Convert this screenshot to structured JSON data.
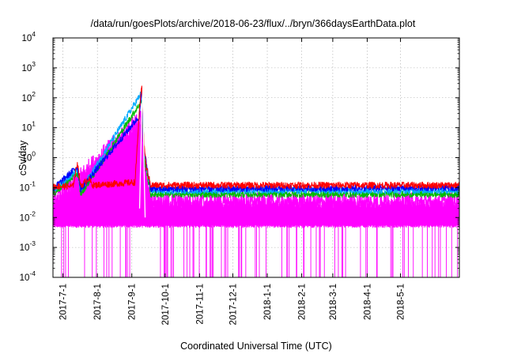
{
  "chart_data": {
    "type": "line",
    "title": "/data/run/goesPlots/archive/2018-06-23/flux/../bryn/366daysEarthData.plot",
    "xlabel": "Coordinated Universal Time (UTC)",
    "ylabel": "cSv/day",
    "yscale": "log",
    "ylim": [
      0.0001,
      10000
    ],
    "xlim": [
      "2017-06-22",
      "2018-06-23"
    ],
    "x_ticks": [
      "2017-7-1",
      "2017-8-1",
      "2017-9-1",
      "2017-10-1",
      "2017-11-1",
      "2017-12-1",
      "2018-1-1",
      "2018-2-1",
      "2018-3-1",
      "2018-4-1",
      "2018-5-1"
    ],
    "y_ticks": [
      {
        "value": 0.0001,
        "base": "10",
        "exp": "-4"
      },
      {
        "value": 0.001,
        "base": "10",
        "exp": "-3"
      },
      {
        "value": 0.01,
        "base": "10",
        "exp": "-2"
      },
      {
        "value": 0.1,
        "base": "10",
        "exp": "-1"
      },
      {
        "value": 1,
        "base": "10",
        "exp": "0"
      },
      {
        "value": 10,
        "base": "10",
        "exp": "1"
      },
      {
        "value": 100,
        "base": "10",
        "exp": "2"
      },
      {
        "value": 1000,
        "base": "10",
        "exp": "3"
      },
      {
        "value": 10000,
        "base": "10",
        "exp": "4"
      }
    ],
    "grid": true,
    "series": [
      {
        "color": "#ff0000",
        "points": [
          [
            "2017-06-22",
            0.11
          ],
          [
            "2017-07-10",
            0.11
          ],
          [
            "2017-07-14",
            0.7
          ],
          [
            "2017-07-17",
            0.11
          ],
          [
            "2017-07-24",
            0.2
          ],
          [
            "2017-07-28",
            0.12
          ],
          [
            "2017-09-04",
            0.15
          ],
          [
            "2017-09-06",
            3
          ],
          [
            "2017-09-08",
            40
          ],
          [
            "2017-09-10",
            300
          ],
          [
            "2017-09-12",
            3
          ],
          [
            "2017-09-14",
            0.5
          ],
          [
            "2017-09-18",
            0.12
          ],
          [
            "2018-06-23",
            0.12
          ]
        ]
      },
      {
        "color": "#0000ff",
        "points": [
          [
            "2017-06-22",
            0.09
          ],
          [
            "2017-07-14",
            0.5
          ],
          [
            "2017-07-17",
            0.09
          ],
          [
            "2017-09-08",
            25
          ],
          [
            "2017-09-10",
            200
          ],
          [
            "2017-09-12",
            2
          ],
          [
            "2017-09-18",
            0.09
          ],
          [
            "2018-06-23",
            0.1
          ]
        ]
      },
      {
        "color": "#00aaff",
        "points": [
          [
            "2017-06-22",
            0.08
          ],
          [
            "2017-07-14",
            0.4
          ],
          [
            "2017-07-17",
            0.08
          ],
          [
            "2017-09-10",
            150
          ],
          [
            "2017-09-12",
            1.5
          ],
          [
            "2017-09-18",
            0.08
          ],
          [
            "2018-06-23",
            0.08
          ]
        ]
      },
      {
        "color": "#00bb00",
        "points": [
          [
            "2017-06-22",
            0.06
          ],
          [
            "2017-07-14",
            0.3
          ],
          [
            "2017-07-17",
            0.06
          ],
          [
            "2017-09-10",
            80
          ],
          [
            "2017-09-12",
            1
          ],
          [
            "2017-09-18",
            0.06
          ],
          [
            "2018-06-23",
            0.06
          ]
        ]
      },
      {
        "color": "#ff00ff",
        "points": [
          [
            "2017-06-22",
            0.03
          ],
          [
            "2017-09-10",
            20
          ],
          [
            "2017-09-12",
            0.5
          ],
          [
            "2017-09-18",
            0.03
          ],
          [
            "2018-06-23",
            0.03
          ]
        ]
      }
    ],
    "noise_floor": {
      "color": "#ff00ff",
      "low": 0.0001,
      "mid": 0.005,
      "high": 0.03
    },
    "white_trace": {
      "color": "#ffffff",
      "points": [
        [
          "2017-09-08",
          0.02
        ],
        [
          "2017-09-10",
          30
        ],
        [
          "2017-09-11",
          200
        ],
        [
          "2017-09-12",
          0.5
        ],
        [
          "2017-09-13",
          0.01
        ]
      ]
    }
  }
}
